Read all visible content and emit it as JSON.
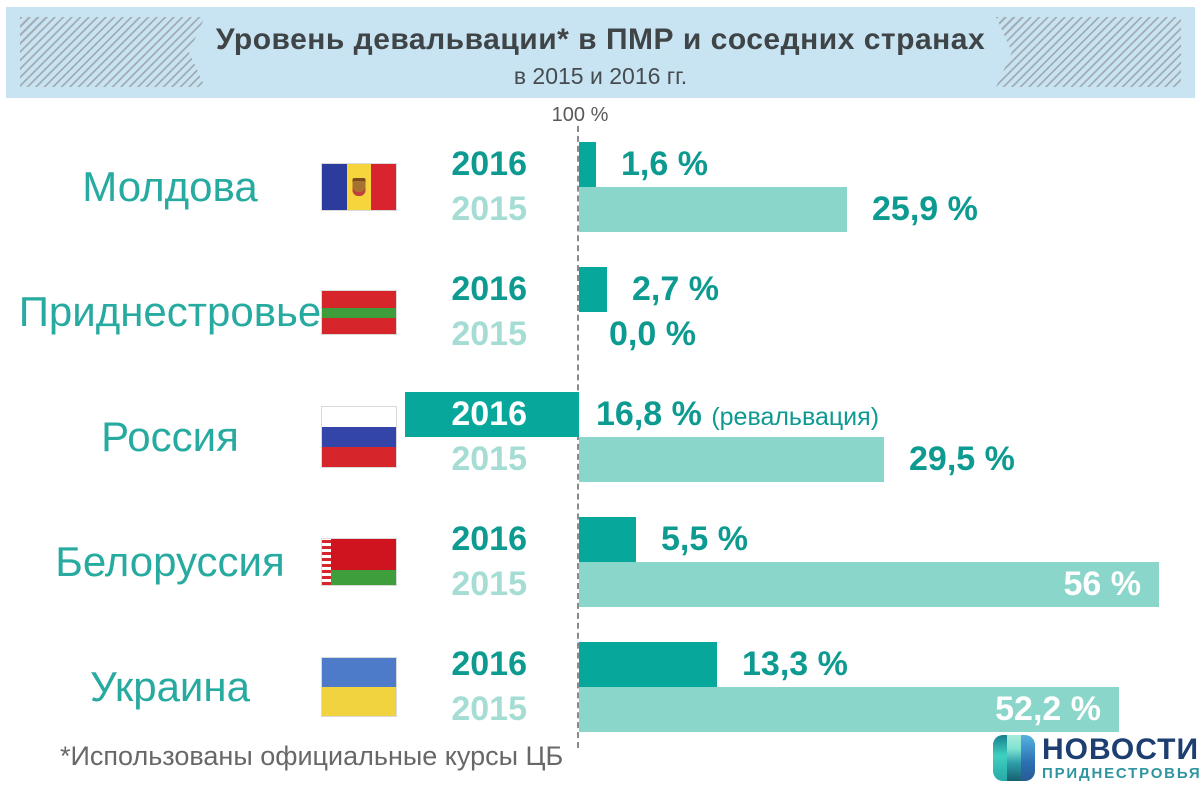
{
  "header": {
    "title": "Уровень девальвации* в ПМР и соседних странах",
    "subtitle": "в 2015 и 2016 гг."
  },
  "axis": {
    "label": "100 %"
  },
  "footnote": "*Использованы официальные курсы ЦБ",
  "logo": {
    "line1": "НОВОСТИ",
    "line2": "ПРИДНЕСТРОВЬЯ"
  },
  "colors": {
    "bar_2016": "#07a79b",
    "bar_2015": "#8bd6ca",
    "accent_text": "#0d9a90",
    "header_bg": "#c8e4f2"
  },
  "chart_data": {
    "type": "bar",
    "orientation": "horizontal",
    "title": "Уровень девальвации в ПМР и соседних странах, в 2015 и 2016 гг.",
    "unit": "%",
    "baseline_label": "100 %",
    "legend_position": "inline-left",
    "grid": false,
    "categories": [
      "Молдова",
      "Приднестровье",
      "Россия",
      "Белоруссия",
      "Украина"
    ],
    "series": [
      {
        "name": "2016",
        "values": [
          1.6,
          2.7,
          -16.8,
          5.5,
          13.3
        ],
        "labels": [
          "1,6 %",
          "2,7 %",
          "16,8 %",
          "5,5 %",
          "13,3 %"
        ],
        "placements": [
          "outside",
          "outside",
          "axis",
          "outside",
          "outside"
        ]
      },
      {
        "name": "2015",
        "values": [
          25.9,
          0.0,
          29.5,
          56,
          52.2
        ],
        "labels": [
          "25,9 %",
          "0,0 %",
          "29,5 %",
          "56 %",
          "52,2 %"
        ],
        "placements": [
          "outside",
          "zero",
          "outside",
          "inside",
          "inside"
        ]
      }
    ],
    "revaluation_note": "(ревальвация)"
  }
}
